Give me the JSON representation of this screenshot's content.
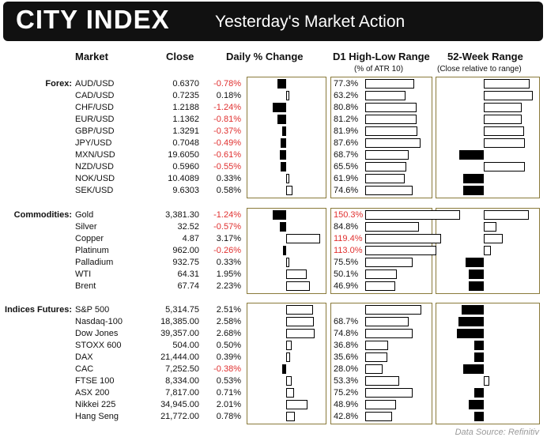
{
  "header": {
    "logo": "CITY INDEX",
    "title": "Yesterday's Market Action"
  },
  "columns": {
    "market": "Market",
    "close": "Close",
    "daily": "Daily % Change",
    "range": "D1 High-Low Range",
    "range_sub": "(% of ATR 10)",
    "week52": "52-Week Range",
    "week52_sub": "(Close relative to range)"
  },
  "source": "Data Source: Refinitiv",
  "colors": {
    "negative_text": "#e0302f",
    "bar_fill_negative": "#000000",
    "bar_fill_positive": "#ffffff",
    "panel_border": "#8a7a3a"
  },
  "chart_data": {
    "type": "table",
    "title": "Yesterday's Market Action",
    "sections": [
      {
        "name": "Forex:",
        "rows": [
          {
            "market": "AUD/USD",
            "close": "0.6370",
            "daily": "-0.78%",
            "change": -0.78,
            "range": "77.3%",
            "range_value": 77.3,
            "range_red": false,
            "week52": 0.93
          },
          {
            "market": "CAD/USD",
            "close": "0.7235",
            "daily": "0.18%",
            "change": 0.18,
            "range": "63.2%",
            "range_value": 63.2,
            "range_red": false,
            "week52": 1.0
          },
          {
            "market": "CHF/USD",
            "close": "1.2188",
            "daily": "-1.24%",
            "change": -1.24,
            "range": "80.8%",
            "range_value": 80.8,
            "range_red": false,
            "week52": 0.78
          },
          {
            "market": "EUR/USD",
            "close": "1.1362",
            "daily": "-0.81%",
            "change": -0.81,
            "range": "81.2%",
            "range_value": 81.2,
            "range_red": false,
            "week52": 0.77
          },
          {
            "market": "GBP/USD",
            "close": "1.3291",
            "daily": "-0.37%",
            "change": -0.37,
            "range": "81.9%",
            "range_value": 81.9,
            "range_red": false,
            "week52": 0.82
          },
          {
            "market": "JPY/USD",
            "close": "0.7048",
            "daily": "-0.49%",
            "change": -0.49,
            "range": "87.6%",
            "range_value": 87.6,
            "range_red": false,
            "week52": 0.84
          },
          {
            "market": "MXN/USD",
            "close": "19.6050",
            "daily": "-0.61%",
            "change": -0.61,
            "range": "68.7%",
            "range_value": 68.7,
            "range_red": false,
            "week52": -0.5
          },
          {
            "market": "NZD/USD",
            "close": "0.5960",
            "daily": "-0.55%",
            "change": -0.55,
            "range": "65.5%",
            "range_value": 65.5,
            "range_red": false,
            "week52": 0.84
          },
          {
            "market": "NOK/USD",
            "close": "10.4089",
            "daily": "0.33%",
            "change": 0.33,
            "range": "61.9%",
            "range_value": 61.9,
            "range_red": false,
            "week52": -0.42
          },
          {
            "market": "SEK/USD",
            "close": "9.6303",
            "daily": "0.58%",
            "change": 0.58,
            "range": "74.6%",
            "range_value": 74.6,
            "range_red": false,
            "week52": -0.42
          }
        ]
      },
      {
        "name": "Commodities:",
        "rows": [
          {
            "market": "Gold",
            "close": "3,381.30",
            "daily": "-1.24%",
            "change": -1.24,
            "range": "150.3%",
            "range_value": 150.3,
            "range_red": true,
            "week52": 0.92
          },
          {
            "market": "Silver",
            "close": "32.52",
            "daily": "-0.57%",
            "change": -0.57,
            "range": "84.8%",
            "range_value": 84.8,
            "range_red": false,
            "week52": 0.25
          },
          {
            "market": "Copper",
            "close": "4.87",
            "daily": "3.17%",
            "change": 3.17,
            "range": "119.4%",
            "range_value": 119.4,
            "range_red": true,
            "week52": 0.38
          },
          {
            "market": "Platinum",
            "close": "962.00",
            "daily": "-0.26%",
            "change": -0.26,
            "range": "113.0%",
            "range_value": 113.0,
            "range_red": true,
            "week52": 0.14
          },
          {
            "market": "Palladium",
            "close": "932.75",
            "daily": "0.33%",
            "change": 0.33,
            "range": "75.5%",
            "range_value": 75.5,
            "range_red": false,
            "week52": -0.37
          },
          {
            "market": "WTI",
            "close": "64.31",
            "daily": "1.95%",
            "change": 1.95,
            "range": "50.1%",
            "range_value": 50.1,
            "range_red": false,
            "week52": -0.3
          },
          {
            "market": "Brent",
            "close": "67.74",
            "daily": "2.23%",
            "change": 2.23,
            "range": "46.9%",
            "range_value": 46.9,
            "range_red": false,
            "week52": -0.3
          }
        ]
      },
      {
        "name": "Indices Futures:",
        "rows": [
          {
            "market": "S&P 500",
            "close": "5,314.75",
            "daily": "2.51%",
            "change": 2.51,
            "range": "",
            "range_value": 89.0,
            "range_red": false,
            "week52": -0.45
          },
          {
            "market": "Nasdaq-100",
            "close": "18,385.00",
            "daily": "2.58%",
            "change": 2.58,
            "range": "68.7%",
            "range_value": 68.7,
            "range_red": false,
            "week52": -0.52
          },
          {
            "market": "Dow Jones",
            "close": "39,357.00",
            "daily": "2.68%",
            "change": 2.68,
            "range": "74.8%",
            "range_value": 74.8,
            "range_red": false,
            "week52": -0.55
          },
          {
            "market": "STOXX 600",
            "close": "504.00",
            "daily": "0.50%",
            "change": 0.5,
            "range": "36.8%",
            "range_value": 36.8,
            "range_red": false,
            "week52": -0.2
          },
          {
            "market": "DAX",
            "close": "21,444.00",
            "daily": "0.39%",
            "change": 0.39,
            "range": "35.6%",
            "range_value": 35.6,
            "range_red": false,
            "week52": -0.2
          },
          {
            "market": "CAC",
            "close": "7,252.50",
            "daily": "-0.38%",
            "change": -0.38,
            "range": "28.0%",
            "range_value": 28.0,
            "range_red": false,
            "week52": -0.42
          },
          {
            "market": "FTSE 100",
            "close": "8,334.00",
            "daily": "0.53%",
            "change": 0.53,
            "range": "53.3%",
            "range_value": 53.3,
            "range_red": false,
            "week52": 0.12
          },
          {
            "market": "ASX 200",
            "close": "7,817.00",
            "daily": "0.71%",
            "change": 0.71,
            "range": "75.2%",
            "range_value": 75.2,
            "range_red": false,
            "week52": -0.2
          },
          {
            "market": "Nikkei 225",
            "close": "34,945.00",
            "daily": "2.01%",
            "change": 2.01,
            "range": "48.9%",
            "range_value": 48.9,
            "range_red": false,
            "week52": -0.3
          },
          {
            "market": "Hang Seng",
            "close": "21,772.00",
            "daily": "0.78%",
            "change": 0.78,
            "range": "42.8%",
            "range_value": 42.8,
            "range_red": false,
            "week52": -0.2
          }
        ]
      }
    ]
  }
}
